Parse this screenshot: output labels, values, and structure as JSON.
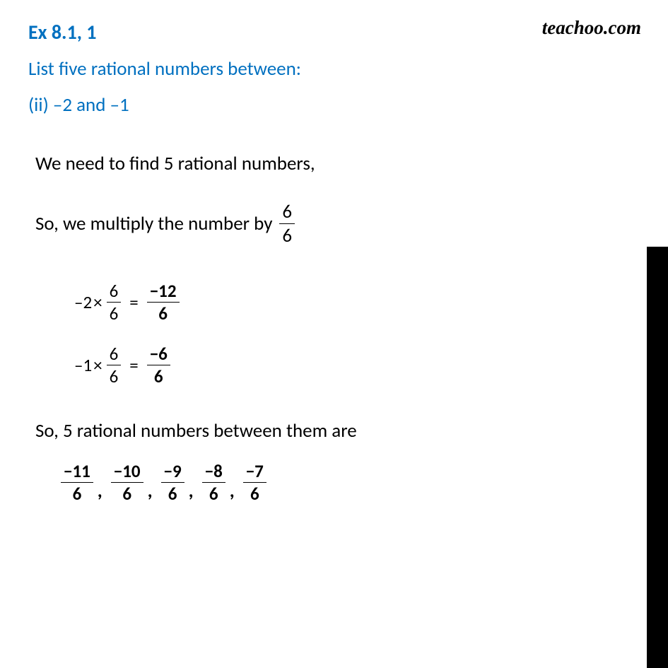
{
  "watermark": "teachoo.com",
  "header": {
    "exercise": "Ex 8.1,  1",
    "prompt": "List five rational numbers between:",
    "part": "(ii) –2 and –1"
  },
  "body": {
    "line1": "We need to find 5 rational numbers,",
    "line2_pre": "So, we multiply the number by ",
    "multiplier": {
      "num": "6",
      "den": "6"
    },
    "eq1": {
      "lhs": "–2",
      "op": "×",
      "frac1": {
        "num": "6",
        "den": "6"
      },
      "eq": "=",
      "result": {
        "num": "−12",
        "den": "6"
      }
    },
    "eq2": {
      "lhs": "–1",
      "op": "×",
      "frac1": {
        "num": "6",
        "den": "6"
      },
      "eq": "=",
      "result": {
        "num": "−6",
        "den": "6"
      }
    },
    "conclusion": "So, 5 rational numbers between them are",
    "answers": [
      {
        "num": "−11",
        "den": "6"
      },
      {
        "num": "−10",
        "den": "6"
      },
      {
        "num": "−9",
        "den": "6"
      },
      {
        "num": "−8",
        "den": "6"
      },
      {
        "num": "−7",
        "den": "6"
      }
    ]
  },
  "colors": {
    "heading": "#0070c0",
    "body": "#000000",
    "background": "#ffffff",
    "sidebar": "#000000"
  }
}
